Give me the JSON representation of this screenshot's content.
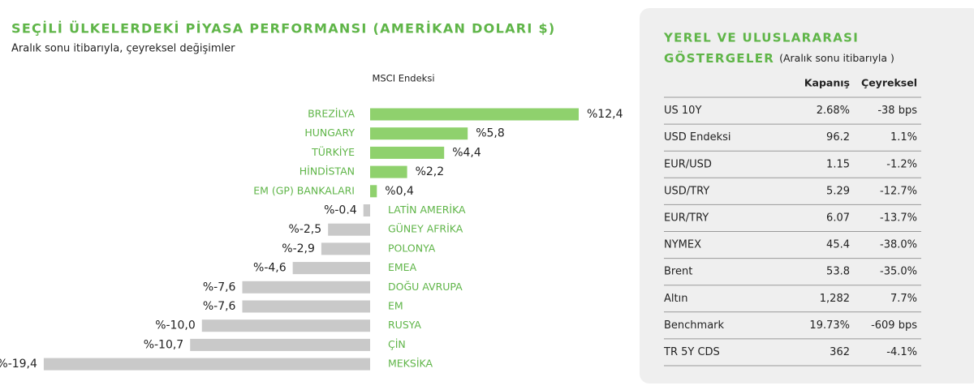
{
  "chart_data": {
    "type": "diverging-bar",
    "title": "SEÇİLİ ÜLKELERDEKİ PİYASA PERFORMANSI (AMERİKAN DOLARI $)",
    "subtitle": "Aralık sonu itibarıyla, çeyreksel değişimler",
    "x_label": "MSCI Endeksi",
    "categories": [
      "BREZİLYA",
      "HUNGARY",
      "TÜRKİYE",
      "HİNDİSTAN",
      "EM (GP) BANKALARI",
      "LATİN AMERİKA",
      "GÜNEY AFRİKA",
      "POLONYA",
      "EMEA",
      "DOĞU AVRUPA",
      "EM",
      "RUSYA",
      "ÇİN",
      "MEKSİKA"
    ],
    "values": [
      12.4,
      5.8,
      4.4,
      2.2,
      0.4,
      -0.4,
      -2.5,
      -2.9,
      -4.6,
      -7.6,
      -7.6,
      -10.0,
      -10.7,
      -19.4
    ],
    "value_labels": [
      "%12,4",
      "%5,8",
      "%4,4",
      "%2,2",
      "%0,4",
      "%-0.4",
      "%-2,5",
      "%-2,9",
      "%-4,6",
      "%-7,6",
      "%-7,6",
      "%-10,0",
      "%-10,7",
      "%-19,4"
    ],
    "color_positive": "#8fd16d",
    "color_negative": "#c9c9c9"
  },
  "table": {
    "title": "YEREL VE ULUSLARARASI",
    "title_2": "GÖSTERGELER",
    "note": "(Aralık sonu itibarıyla )",
    "columns": [
      "Kapanış",
      "Çeyreksel"
    ],
    "rows": [
      [
        "US 10Y",
        "2.68%",
        "-38 bps"
      ],
      [
        "USD Endeksi",
        "96.2",
        "1.1%"
      ],
      [
        "EUR/USD",
        "1.15",
        "-1.2%"
      ],
      [
        "USD/TRY",
        "5.29",
        "-12.7%"
      ],
      [
        "EUR/TRY",
        "6.07",
        "-13.7%"
      ],
      [
        "NYMEX",
        "45.4",
        "-38.0%"
      ],
      [
        "Brent",
        "53.8",
        "-35.0%"
      ],
      [
        "Altın",
        "1,282",
        "7.7%"
      ],
      [
        "Benchmark",
        "19.73%",
        "-609 bps"
      ],
      [
        "TR 5Y CDS",
        "362",
        "-4.1%"
      ]
    ]
  }
}
